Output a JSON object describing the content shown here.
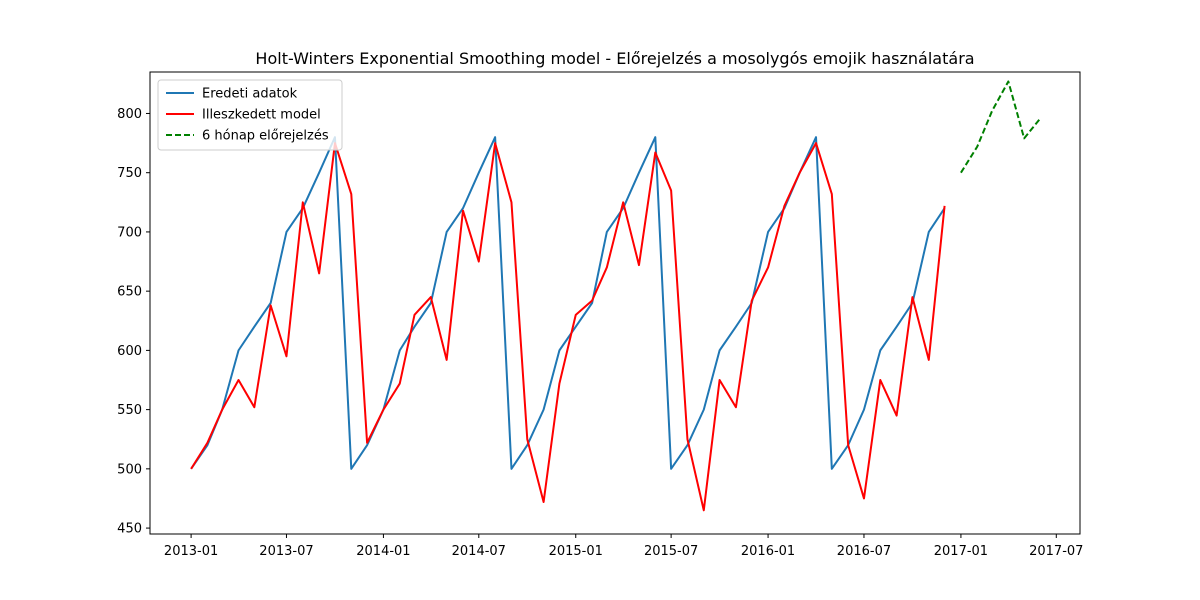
{
  "chart_data": {
    "type": "line",
    "title": "Holt-Winters Exponential Smoothing model - Előrejelzés a mosolygós emojik használatára",
    "xlabel": "",
    "ylabel": "",
    "xlim": [
      "2012-10-15",
      "2017-08-15"
    ],
    "ylim": [
      445,
      835
    ],
    "grid": false,
    "legend_position": "top-left",
    "x_ticks": [
      "2013-01",
      "2013-07",
      "2014-01",
      "2014-07",
      "2015-01",
      "2015-07",
      "2016-01",
      "2016-07",
      "2017-01",
      "2017-07"
    ],
    "y_ticks": [
      450,
      500,
      550,
      600,
      650,
      700,
      750,
      800
    ],
    "series": [
      {
        "name": "Eredeti adatok",
        "color": "#1f77b4",
        "style": "solid",
        "x": [
          "2013-01",
          "2013-02",
          "2013-03",
          "2013-04",
          "2013-05",
          "2013-06",
          "2013-07",
          "2013-08",
          "2013-09",
          "2013-10",
          "2013-11",
          "2013-12",
          "2014-01",
          "2014-02",
          "2014-03",
          "2014-04",
          "2014-05",
          "2014-06",
          "2014-07",
          "2014-08",
          "2014-09",
          "2014-10",
          "2014-11",
          "2014-12",
          "2015-01",
          "2015-02",
          "2015-03",
          "2015-04",
          "2015-05",
          "2015-06",
          "2015-07",
          "2015-08",
          "2015-09",
          "2015-10",
          "2015-11",
          "2015-12",
          "2016-01",
          "2016-02",
          "2016-03",
          "2016-04",
          "2016-05",
          "2016-06",
          "2016-07",
          "2016-08",
          "2016-09",
          "2016-10",
          "2016-11",
          "2016-12"
        ],
        "values": [
          500,
          520,
          550,
          600,
          620,
          640,
          700,
          720,
          750,
          780,
          500,
          520,
          550,
          600,
          620,
          640,
          700,
          720,
          750,
          780,
          500,
          520,
          550,
          600,
          620,
          640,
          700,
          720,
          750,
          780,
          500,
          520,
          550,
          600,
          620,
          640,
          700,
          720,
          750,
          780,
          500,
          520,
          550,
          600,
          620,
          640,
          700,
          720
        ]
      },
      {
        "name": "Illeszkedett model",
        "color": "#ff0000",
        "style": "solid",
        "x": [
          "2013-01",
          "2013-02",
          "2013-03",
          "2013-04",
          "2013-05",
          "2013-06",
          "2013-07",
          "2013-08",
          "2013-09",
          "2013-10",
          "2013-11",
          "2013-12",
          "2014-01",
          "2014-02",
          "2014-03",
          "2014-04",
          "2014-05",
          "2014-06",
          "2014-07",
          "2014-08",
          "2014-09",
          "2014-10",
          "2014-11",
          "2014-12",
          "2015-01",
          "2015-02",
          "2015-03",
          "2015-04",
          "2015-05",
          "2015-06",
          "2015-07",
          "2015-08",
          "2015-09",
          "2015-10",
          "2015-11",
          "2015-12",
          "2016-01",
          "2016-02",
          "2016-03",
          "2016-04",
          "2016-05",
          "2016-06",
          "2016-07",
          "2016-08",
          "2016-09",
          "2016-10",
          "2016-11",
          "2016-12"
        ],
        "values": [
          500,
          522,
          550,
          575,
          552,
          638,
          595,
          725,
          665,
          775,
          732,
          522,
          550,
          572,
          630,
          645,
          592,
          718,
          675,
          775,
          725,
          525,
          472,
          572,
          630,
          642,
          670,
          725,
          672,
          767,
          735,
          525,
          465,
          575,
          552,
          642,
          670,
          722,
          750,
          775,
          732,
          520,
          475,
          575,
          545,
          645,
          592,
          722
        ]
      },
      {
        "name": "6 hónap előrejelzés",
        "color": "#008000",
        "style": "dashed",
        "x": [
          "2017-01",
          "2017-02",
          "2017-03",
          "2017-04",
          "2017-05",
          "2017-06"
        ],
        "values": [
          750,
          772,
          802,
          827,
          779,
          796
        ]
      }
    ]
  }
}
